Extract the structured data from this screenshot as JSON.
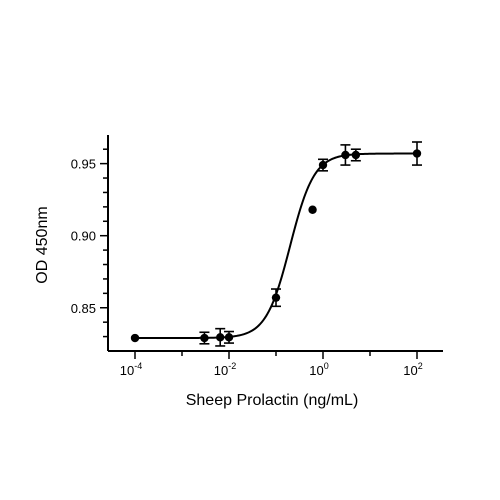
{
  "chart_data": {
    "type": "scatter",
    "title": "",
    "xlabel": "Sheep Prolactin (ng/mL)",
    "ylabel": "OD 450nm",
    "xscale": "log",
    "xlim": [
      0.0001,
      100
    ],
    "ylim": [
      0.82,
      0.965
    ],
    "x_ticks": [
      {
        "value": 0.0001,
        "base": "10",
        "exp": "-4"
      },
      {
        "value": 0.01,
        "base": "10",
        "exp": "-2"
      },
      {
        "value": 1,
        "base": "10",
        "exp": "0"
      },
      {
        "value": 100,
        "base": "10",
        "exp": "2"
      }
    ],
    "y_ticks": [
      {
        "value": 0.85,
        "label": "0.85"
      },
      {
        "value": 0.9,
        "label": "0.90"
      },
      {
        "value": 0.95,
        "label": "0.95"
      }
    ],
    "points": [
      {
        "x": 0.0001,
        "y": 0.829,
        "err": 0.0
      },
      {
        "x": 0.003,
        "y": 0.829,
        "err": 0.004
      },
      {
        "x": 0.0065,
        "y": 0.8295,
        "err": 0.006
      },
      {
        "x": 0.01,
        "y": 0.8295,
        "err": 0.004
      },
      {
        "x": 0.1,
        "y": 0.857,
        "err": 0.006
      },
      {
        "x": 0.6,
        "y": 0.918,
        "err": 0.0
      },
      {
        "x": 1.0,
        "y": 0.949,
        "err": 0.004
      },
      {
        "x": 3.0,
        "y": 0.956,
        "err": 0.007
      },
      {
        "x": 5.0,
        "y": 0.956,
        "err": 0.004
      },
      {
        "x": 100,
        "y": 0.957,
        "err": 0.008
      }
    ],
    "fit": {
      "bottom": 0.829,
      "top": 0.957,
      "ec50": 0.2,
      "hill": 1.7
    },
    "grid": false,
    "legend": "none",
    "color": "#000000"
  }
}
